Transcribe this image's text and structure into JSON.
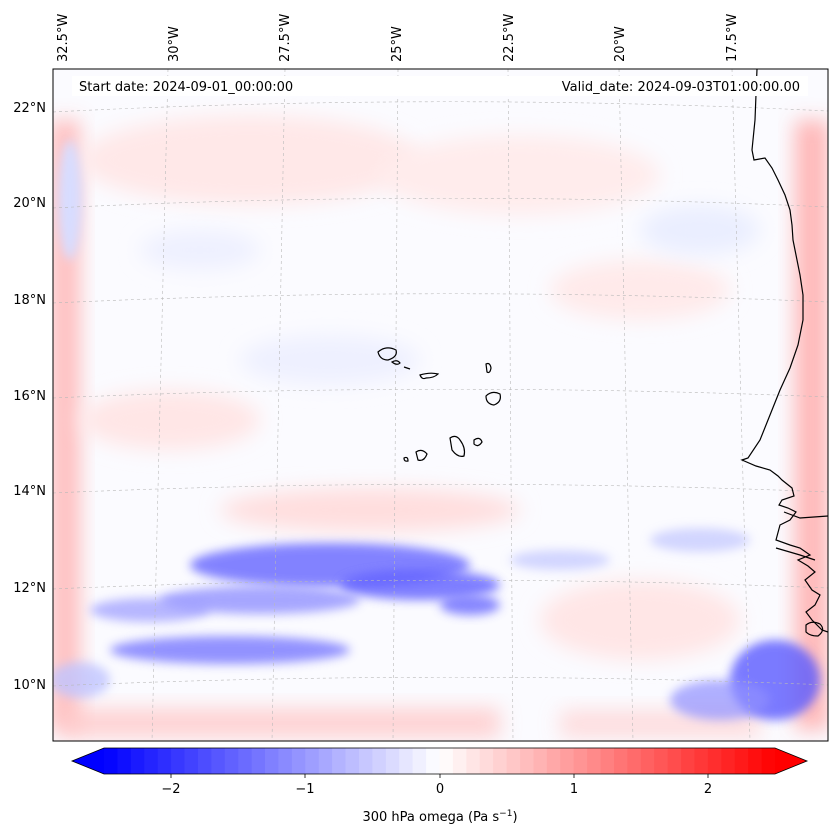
{
  "header": {
    "start_date": "Start date: 2024-09-01_00:00:00",
    "valid_date": "Valid_date: 2024-09-03T01:00:00.00"
  },
  "lon_labels": [
    "32.5°W",
    "30°W",
    "27.5°W",
    "25°W",
    "22.5°W",
    "20°W",
    "17.5°W"
  ],
  "lat_labels": [
    "22°N",
    "20°N",
    "18°N",
    "16°N",
    "14°N",
    "12°N",
    "10°N"
  ],
  "colorbar": {
    "ticks": [
      "−2",
      "−1",
      "0",
      "1",
      "2"
    ],
    "label_main": "300 hPa omega (Pa s",
    "label_sup": "−1",
    "label_end": ")",
    "vmin": -2.6,
    "vmax": 2.6,
    "colors": {
      "min": "#0000ff",
      "mid": "#ffffff",
      "max": "#ff0000"
    }
  }
}
